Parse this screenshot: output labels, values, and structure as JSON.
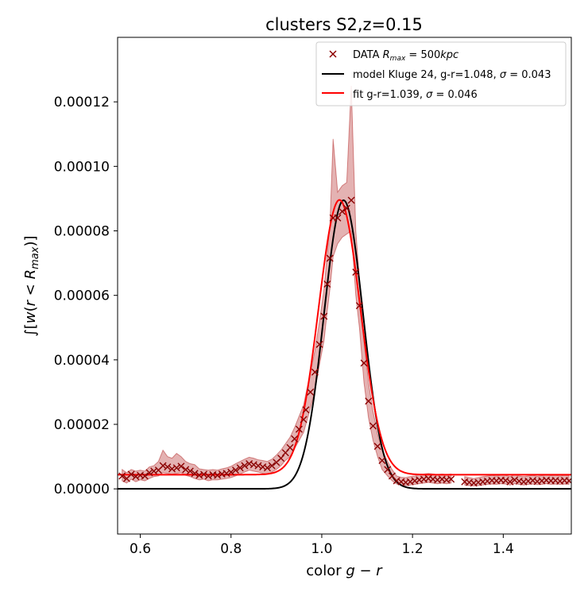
{
  "chart_data": {
    "type": "line",
    "title": "clusters S2,z=0.15",
    "xlabel": "color g - r",
    "ylabel": "∫[w(r < R_max)]",
    "xlim": [
      0.55,
      1.55
    ],
    "ylim": [
      -1.4e-05,
      0.00014
    ],
    "x_ticks": [
      0.6,
      0.8,
      1.0,
      1.2,
      1.4
    ],
    "x_tick_labels": [
      "0.6",
      "0.8",
      "1.0",
      "1.2",
      "1.4"
    ],
    "y_ticks": [
      0,
      2e-05,
      4e-05,
      6e-05,
      8e-05,
      0.0001,
      0.00012
    ],
    "y_tick_labels": [
      "0.00000",
      "0.00002",
      "0.00004",
      "0.00006",
      "0.00008",
      "0.00010",
      "0.00012"
    ],
    "grid": false,
    "legend_position": "top-right",
    "legend": [
      {
        "label": "DATA R_max = 500kpc",
        "marker": "x",
        "color": "#8b0000"
      },
      {
        "label": "model Kluge 24, g-r=1.048, σ = 0.043",
        "line": true,
        "color": "#000000"
      },
      {
        "label": "fit g-r=1.039, σ = 0.046",
        "line": true,
        "color": "#ff0000"
      }
    ],
    "series": [
      {
        "name": "DATA R_max = 500kpc",
        "kind": "scatter",
        "color": "#8b0000",
        "band_color": "#b22222",
        "points": [
          [
            0.56,
            4e-06,
            2.5e-06,
            6e-06
          ],
          [
            0.57,
            3.2e-06,
            1.8e-06,
            5e-06
          ],
          [
            0.58,
            4.5e-06,
            3e-06,
            6e-06
          ],
          [
            0.59,
            3.8e-06,
            2.2e-06,
            5.5e-06
          ],
          [
            0.6,
            4.2e-06,
            2.8e-06,
            5.8e-06
          ],
          [
            0.61,
            4e-06,
            2.5e-06,
            5.5e-06
          ],
          [
            0.62,
            5e-06,
            3.2e-06,
            6.8e-06
          ],
          [
            0.63,
            5.5e-06,
            3.8e-06,
            7.2e-06
          ],
          [
            0.64,
            5.8e-06,
            4e-06,
            8.5e-06
          ],
          [
            0.65,
            7.2e-06,
            5e-06,
            1.2e-05
          ],
          [
            0.66,
            6.8e-06,
            4.8e-06,
            1e-05
          ],
          [
            0.67,
            6.2e-06,
            4.5e-06,
            9.5e-06
          ],
          [
            0.68,
            6.5e-06,
            4.8e-06,
            1.1e-05
          ],
          [
            0.69,
            7e-06,
            5e-06,
            1e-05
          ],
          [
            0.7,
            6e-06,
            4.2e-06,
            8.5e-06
          ],
          [
            0.71,
            5.5e-06,
            3.8e-06,
            7.8e-06
          ],
          [
            0.72,
            4.8e-06,
            3.2e-06,
            7.5e-06
          ],
          [
            0.73,
            4.2e-06,
            2.8e-06,
            6.2e-06
          ],
          [
            0.74,
            4.5e-06,
            3e-06,
            6e-06
          ],
          [
            0.75,
            4e-06,
            2.5e-06,
            5.8e-06
          ],
          [
            0.76,
            4.4e-06,
            2.8e-06,
            6e-06
          ],
          [
            0.77,
            4.2e-06,
            2.8e-06,
            5.8e-06
          ],
          [
            0.78,
            4.6e-06,
            3e-06,
            6.2e-06
          ],
          [
            0.79,
            4.8e-06,
            3.2e-06,
            6.5e-06
          ],
          [
            0.8,
            5.2e-06,
            3.5e-06,
            7e-06
          ],
          [
            0.81,
            5.8e-06,
            4e-06,
            7.8e-06
          ],
          [
            0.82,
            6.5e-06,
            4.6e-06,
            8.5e-06
          ],
          [
            0.83,
            7.2e-06,
            5.2e-06,
            9.2e-06
          ],
          [
            0.84,
            7.8e-06,
            5.8e-06,
            9.8e-06
          ],
          [
            0.85,
            7.5e-06,
            5.5e-06,
            9.5e-06
          ],
          [
            0.86,
            7.2e-06,
            5.2e-06,
            9e-06
          ],
          [
            0.87,
            6.8e-06,
            4.8e-06,
            8.8e-06
          ],
          [
            0.88,
            6.5e-06,
            4.5e-06,
            8.5e-06
          ],
          [
            0.89,
            7.2e-06,
            5.2e-06,
            9.2e-06
          ],
          [
            0.9,
            8.2e-06,
            6e-06,
            1.05e-05
          ],
          [
            0.91,
            9.5e-06,
            7.2e-06,
            1.2e-05
          ],
          [
            0.92,
            1.12e-05,
            8.8e-06,
            1.4e-05
          ],
          [
            0.93,
            1.28e-05,
            1e-05,
            1.6e-05
          ],
          [
            0.94,
            1.55e-05,
            1.25e-05,
            1.9e-05
          ],
          [
            0.95,
            1.85e-05,
            1.5e-05,
            2.25e-05
          ],
          [
            0.96,
            2.15e-05,
            1.75e-05,
            2.6e-05
          ],
          [
            0.965,
            2.45e-05,
            2e-05,
            2.95e-05
          ],
          [
            0.975,
            3e-05,
            2.5e-05,
            3.6e-05
          ],
          [
            0.985,
            3.62e-05,
            3.05e-05,
            4.3e-05
          ],
          [
            0.995,
            4.48e-05,
            3.85e-05,
            5.2e-05
          ],
          [
            1.005,
            5.35e-05,
            4.6e-05,
            6.2e-05
          ],
          [
            1.012,
            6.35e-05,
            5.5e-05,
            7.3e-05
          ],
          [
            1.018,
            7.15e-05,
            6.2e-05,
            8.2e-05
          ],
          [
            1.025,
            8.4e-05,
            7.2e-05,
            0.0001085
          ],
          [
            1.035,
            8.4e-05,
            7.6e-05,
            9.2e-05
          ],
          [
            1.045,
            8.6e-05,
            7.8e-05,
            9.4e-05
          ],
          [
            1.055,
            8.7e-05,
            7.9e-05,
            9.5e-05
          ],
          [
            1.065,
            8.95e-05,
            8e-05,
            0.000125
          ],
          [
            1.075,
            6.72e-05,
            6e-05,
            8e-05
          ],
          [
            1.083,
            5.68e-05,
            5e-05,
            6.5e-05
          ],
          [
            1.093,
            3.9e-05,
            3.3e-05,
            4.6e-05
          ],
          [
            1.103,
            2.72e-05,
            2.2e-05,
            3.3e-05
          ],
          [
            1.113,
            1.95e-05,
            1.5e-05,
            2.4e-05
          ],
          [
            1.123,
            1.32e-05,
            1e-05,
            1.7e-05
          ],
          [
            1.133,
            8.8e-06,
            6e-06,
            1.2e-05
          ],
          [
            1.145,
            6e-06,
            4e-06,
            8.5e-06
          ],
          [
            1.155,
            4e-06,
            2.5e-06,
            6e-06
          ],
          [
            1.165,
            2.5e-06,
            1.5e-06,
            4e-06
          ],
          [
            1.175,
            2.2e-06,
            1.2e-06,
            3.6e-06
          ],
          [
            1.185,
            2e-06,
            1e-06,
            3.5e-06
          ],
          [
            1.195,
            2.2e-06,
            1.2e-06,
            3.8e-06
          ],
          [
            1.205,
            2.5e-06,
            1.4e-06,
            4e-06
          ],
          [
            1.215,
            2.8e-06,
            1.6e-06,
            4.4e-06
          ],
          [
            1.225,
            3e-06,
            1.8e-06,
            4.6e-06
          ],
          [
            1.235,
            3.2e-06,
            2e-06,
            4.8e-06
          ],
          [
            1.245,
            3e-06,
            1.8e-06,
            4.6e-06
          ],
          [
            1.255,
            2.8e-06,
            1.6e-06,
            4.4e-06
          ],
          [
            1.265,
            3e-06,
            1.8e-06,
            4.6e-06
          ],
          [
            1.275,
            2.8e-06,
            1.6e-06,
            4.4e-06
          ],
          [
            1.285,
            3e-06,
            1.8e-06,
            4.6e-06
          ],
          [
            1.315,
            2.2e-06,
            1.2e-06,
            3.8e-06
          ],
          [
            1.325,
            2e-06,
            1e-06,
            3.5e-06
          ],
          [
            1.335,
            1.8e-06,
            9e-07,
            3.2e-06
          ],
          [
            1.345,
            2e-06,
            1e-06,
            3.5e-06
          ],
          [
            1.355,
            2.2e-06,
            1.2e-06,
            3.8e-06
          ],
          [
            1.365,
            2.4e-06,
            1.4e-06,
            4e-06
          ],
          [
            1.375,
            2.6e-06,
            1.5e-06,
            4.2e-06
          ],
          [
            1.385,
            2.5e-06,
            1.4e-06,
            4e-06
          ],
          [
            1.395,
            2.7e-06,
            1.6e-06,
            4.3e-06
          ],
          [
            1.405,
            2.6e-06,
            1.5e-06,
            4.2e-06
          ],
          [
            1.415,
            2.2e-06,
            1.2e-06,
            3.8e-06
          ],
          [
            1.425,
            2.8e-06,
            1.6e-06,
            4.4e-06
          ],
          [
            1.435,
            2.4e-06,
            1.4e-06,
            4e-06
          ],
          [
            1.445,
            2.2e-06,
            1.2e-06,
            3.8e-06
          ],
          [
            1.455,
            2.4e-06,
            1.4e-06,
            4e-06
          ],
          [
            1.465,
            2.6e-06,
            1.5e-06,
            4.2e-06
          ],
          [
            1.475,
            2.3e-06,
            1.3e-06,
            3.9e-06
          ],
          [
            1.485,
            2.5e-06,
            1.4e-06,
            4.1e-06
          ],
          [
            1.495,
            2.7e-06,
            1.6e-06,
            4.3e-06
          ],
          [
            1.505,
            2.5e-06,
            1.4e-06,
            4.1e-06
          ],
          [
            1.515,
            2.6e-06,
            1.5e-06,
            4.2e-06
          ],
          [
            1.525,
            2.4e-06,
            1.4e-06,
            4e-06
          ],
          [
            1.535,
            2.6e-06,
            1.5e-06,
            4.2e-06
          ],
          [
            1.545,
            2.5e-06,
            1.4e-06,
            4.1e-06
          ]
        ]
      },
      {
        "name": "model Kluge 24, g-r=1.048, σ = 0.043",
        "kind": "gaussian",
        "color": "#000000",
        "mu": 1.048,
        "sigma": 0.043,
        "amplitude": 8.95e-05,
        "baseline": 0.0
      },
      {
        "name": "fit g-r=1.039, σ = 0.046",
        "kind": "gaussian",
        "color": "#ff0000",
        "mu": 1.039,
        "sigma": 0.046,
        "amplitude": 8.52e-05,
        "baseline": 4.4e-06
      }
    ]
  }
}
